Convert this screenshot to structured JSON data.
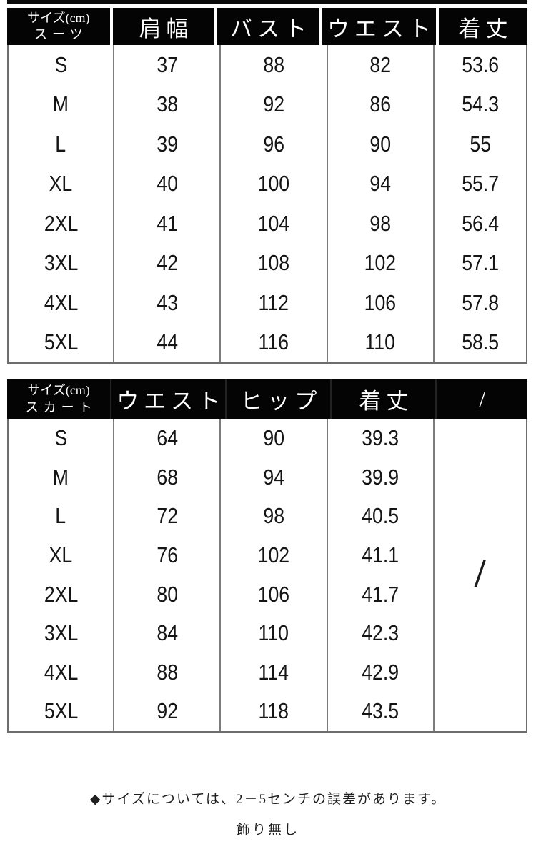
{
  "colors": {
    "header_bg": "#000000",
    "header_text": "#ffffff",
    "body_text": "#151515",
    "grid_line": "#7c7c7c",
    "outer_border": "#6d6d6d"
  },
  "table_suit": {
    "corner_line1": "サイズ(cm)",
    "corner_line2": "スーツ",
    "columns": [
      "肩幅",
      "バスト",
      "ウエスト",
      "着丈"
    ],
    "rows": [
      {
        "size": "S",
        "values": [
          "37",
          "88",
          "82",
          "53.6"
        ]
      },
      {
        "size": "M",
        "values": [
          "38",
          "92",
          "86",
          "54.3"
        ]
      },
      {
        "size": "L",
        "values": [
          "39",
          "96",
          "90",
          "55"
        ]
      },
      {
        "size": "XL",
        "values": [
          "40",
          "100",
          "94",
          "55.7"
        ]
      },
      {
        "size": "2XL",
        "values": [
          "41",
          "104",
          "98",
          "56.4"
        ]
      },
      {
        "size": "3XL",
        "values": [
          "42",
          "108",
          "102",
          "57.1"
        ]
      },
      {
        "size": "4XL",
        "values": [
          "43",
          "112",
          "106",
          "57.8"
        ]
      },
      {
        "size": "5XL",
        "values": [
          "44",
          "116",
          "110",
          "58.5"
        ]
      }
    ]
  },
  "table_skirt": {
    "corner_line1": "サイズ(cm)",
    "corner_line2": "スカート",
    "columns": [
      "ウエスト",
      "ヒップ",
      "着丈",
      "/"
    ],
    "merged_slash": "/",
    "rows": [
      {
        "size": "S",
        "values": [
          "64",
          "90",
          "39.3"
        ]
      },
      {
        "size": "M",
        "values": [
          "68",
          "94",
          "39.9"
        ]
      },
      {
        "size": "L",
        "values": [
          "72",
          "98",
          "40.5"
        ]
      },
      {
        "size": "XL",
        "values": [
          "76",
          "102",
          "41.1"
        ]
      },
      {
        "size": "2XL",
        "values": [
          "80",
          "106",
          "41.7"
        ]
      },
      {
        "size": "3XL",
        "values": [
          "84",
          "110",
          "42.3"
        ]
      },
      {
        "size": "4XL",
        "values": [
          "88",
          "114",
          "42.9"
        ]
      },
      {
        "size": "5XL",
        "values": [
          "92",
          "118",
          "43.5"
        ]
      }
    ]
  },
  "footer": {
    "note": "◆サイズについては、2－5センチの誤差があります。",
    "caption": "飾り無し"
  }
}
